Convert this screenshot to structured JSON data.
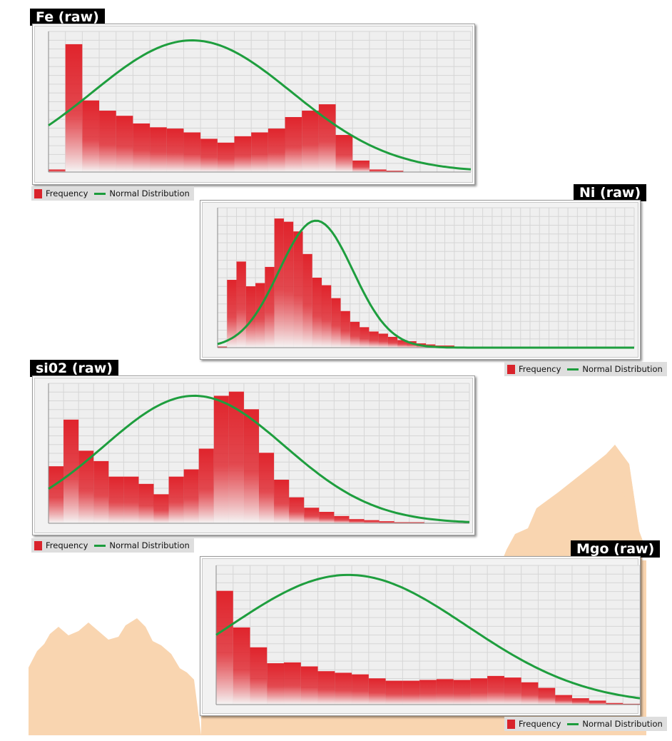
{
  "legend": {
    "frequency": "Frequency",
    "normal": "Normal Distribution"
  },
  "colors": {
    "bar": "#e0242c",
    "curve": "#1e9e3e",
    "background_shape": "#f9d5b0"
  },
  "chart_data": [
    {
      "type": "bar",
      "title": "Fe (raw)",
      "series": [
        {
          "name": "Frequency",
          "values": [
            2,
            100,
            56,
            48,
            44,
            38,
            35,
            34,
            31,
            26,
            23,
            28,
            31,
            34,
            43,
            48,
            53,
            29,
            9,
            2,
            1,
            0,
            0,
            0,
            0
          ]
        },
        {
          "name": "Normal Distribution",
          "curve": {
            "mean": 8.5,
            "sd": 5.9,
            "peak": 103,
            "y_at_start": 32,
            "y_at_end": 1
          }
        }
      ],
      "ylim": [
        0,
        110
      ],
      "grid": true,
      "legend_position": "bottom-left"
    },
    {
      "type": "bar",
      "title": "Ni (raw)",
      "series": [
        {
          "name": "Frequency",
          "values": [
            1,
            63,
            80,
            57,
            60,
            75,
            120,
            117,
            108,
            87,
            65,
            58,
            46,
            34,
            24,
            19,
            15,
            13,
            10,
            7,
            6,
            4,
            3,
            2,
            2,
            1,
            1,
            1,
            1,
            1,
            0,
            0,
            0,
            0,
            0,
            0,
            0,
            0,
            0,
            0,
            0,
            0,
            0,
            0
          ]
        },
        {
          "name": "Normal Distribution",
          "curve": {
            "mean": 10.4,
            "sd": 3.9,
            "peak": 118,
            "y_at_start": 27,
            "y_at_end": 0
          }
        }
      ],
      "ylim": [
        0,
        130
      ],
      "grid": true,
      "legend_position": "bottom-right"
    },
    {
      "type": "bar",
      "title": "si02 (raw)",
      "series": [
        {
          "name": "Frequency",
          "values": [
            55,
            100,
            70,
            60,
            45,
            45,
            38,
            28,
            45,
            52,
            72,
            123,
            127,
            110,
            68,
            42,
            25,
            15,
            11,
            7,
            4,
            3,
            2,
            1,
            1,
            0,
            0,
            0
          ]
        },
        {
          "name": "Normal Distribution",
          "curve": {
            "mean": 9.7,
            "sd": 6.0,
            "peak": 123,
            "y_at_start": 18,
            "y_at_end": 1
          }
        }
      ],
      "ylim": [
        0,
        135
      ],
      "grid": true,
      "legend_position": "bottom-left"
    },
    {
      "type": "bar",
      "title": "Mgo (raw)",
      "series": [
        {
          "name": "Frequency",
          "values": [
            143,
            97,
            72,
            52,
            53,
            48,
            42,
            40,
            38,
            33,
            30,
            30,
            31,
            32,
            31,
            33,
            36,
            34,
            28,
            21,
            12,
            8,
            5,
            2,
            1
          ]
        },
        {
          "name": "Normal Distribution",
          "curve": {
            "mean": 7.8,
            "sd": 7.0,
            "peak": 163,
            "y_at_start": 73,
            "y_at_end": 3
          }
        }
      ],
      "ylim": [
        0,
        175
      ],
      "grid": true,
      "legend_position": "bottom-right"
    }
  ]
}
